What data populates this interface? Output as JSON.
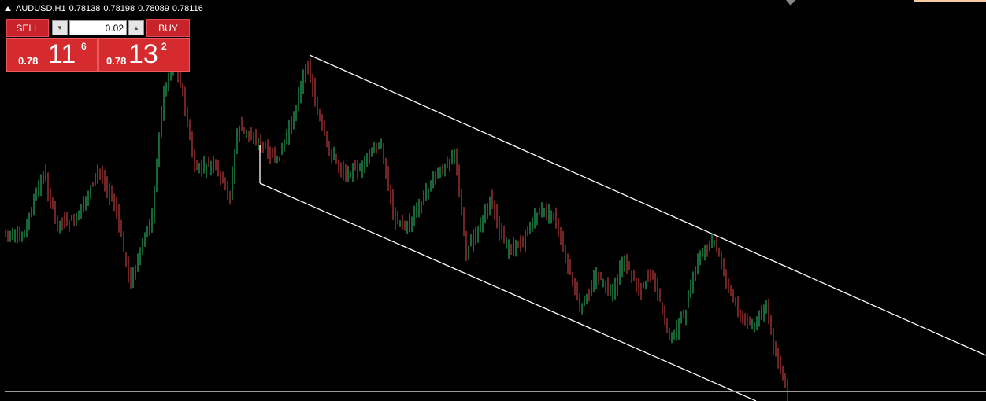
{
  "header": {
    "symbol": "AUDUSD,H1",
    "open": "0.78138",
    "high": "0.78198",
    "low": "0.78089",
    "close": "0.78116"
  },
  "trade_panel": {
    "sell_label": "SELL",
    "buy_label": "BUY",
    "lot_value": "0.02",
    "sell_price": {
      "prefix": "0.78",
      "big": "11",
      "sup": "6"
    },
    "buy_price": {
      "prefix": "0.78",
      "big": "13",
      "sup": "2"
    }
  },
  "colors": {
    "background": "#000000",
    "bull_candle": "#2ecc71",
    "bear_candle": "#e04848",
    "channel_line": "#ffffff",
    "button_red": "#c8232a"
  },
  "chart_data": {
    "type": "candlestick",
    "symbol": "AUDUSD",
    "timeframe": "H1",
    "ohlc_last": [
      0.78138,
      0.78198,
      0.78089,
      0.78116
    ],
    "trend": "descending-channel",
    "channel_lines": [
      "upper",
      "lower"
    ]
  }
}
